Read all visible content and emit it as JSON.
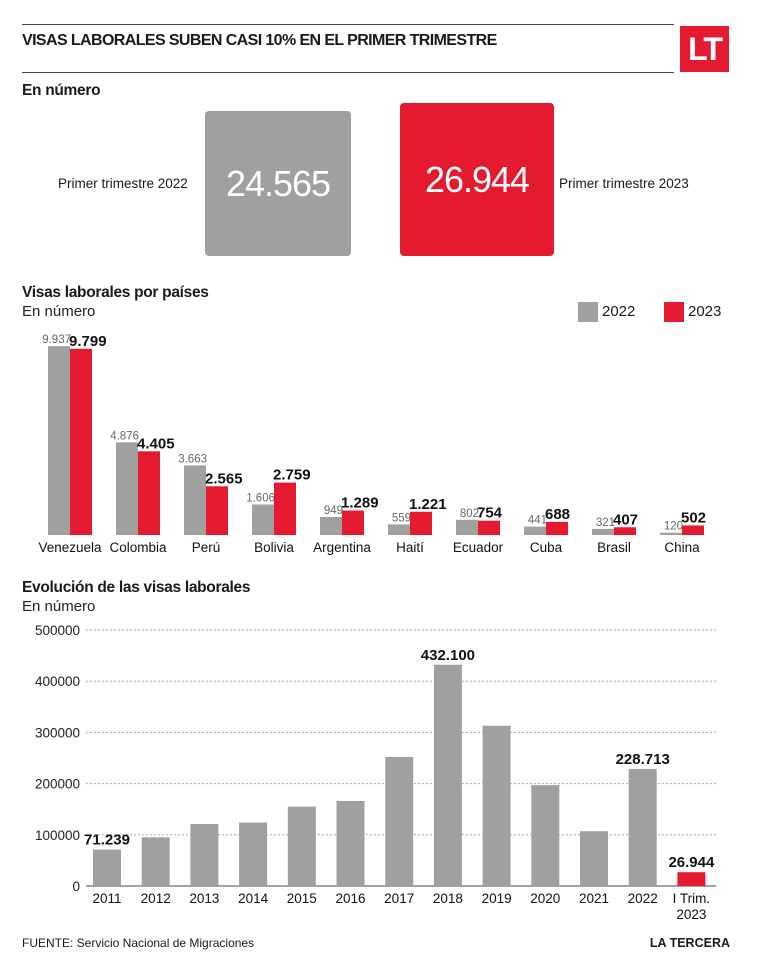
{
  "header": {
    "title": "VISAS LABORALES SUBEN CASI 10% EN EL PRIMER TRIMESTRE",
    "logo": "LT"
  },
  "summary": {
    "heading": "En número",
    "left_label": "Primer trimestre 2022",
    "left_value": "24.565",
    "right_label": "Primer trimestre 2023",
    "right_value": "26.944",
    "colors": {
      "2022": "#a0a0a0",
      "2023": "#e41b30"
    }
  },
  "countries": {
    "heading": "Visas laborales por países",
    "subheading": "En número",
    "legend": [
      "2022",
      "2023"
    ]
  },
  "evolution": {
    "heading": "Evolución de las visas laborales",
    "subheading": "En número"
  },
  "footer": {
    "source": "FUENTE: Servicio Nacional de Migraciones",
    "brand": "LA TERCERA"
  },
  "chart_data": [
    {
      "type": "bar",
      "title": "Visas laborales por países",
      "subtitle": "En número",
      "categories": [
        "Venezuela",
        "Colombia",
        "Perú",
        "Bolivia",
        "Argentina",
        "Haití",
        "Ecuador",
        "Cuba",
        "Brasil",
        "China"
      ],
      "series": [
        {
          "name": "2022",
          "color": "#a0a0a0",
          "values": [
            9937,
            4876,
            3663,
            1606,
            949,
            559,
            802,
            441,
            321,
            120
          ],
          "labels": [
            "9.937",
            "4.876",
            "3.663",
            "1.606",
            "949",
            "559",
            "802",
            "441",
            "321",
            "120"
          ]
        },
        {
          "name": "2023",
          "color": "#e41b30",
          "values": [
            9799,
            4405,
            2565,
            2759,
            1289,
            1221,
            754,
            688,
            407,
            502
          ],
          "labels": [
            "9.799",
            "4.405",
            "2.565",
            "2.759",
            "1.289",
            "1.221",
            "754",
            "688",
            "407",
            "502"
          ]
        }
      ],
      "ylim": [
        0,
        10000
      ],
      "legend": "top-right",
      "grid": false
    },
    {
      "type": "bar",
      "title": "Evolución de las visas laborales",
      "subtitle": "En número",
      "categories": [
        "2011",
        "2012",
        "2013",
        "2014",
        "2015",
        "2016",
        "2017",
        "2018",
        "2019",
        "2020",
        "2021",
        "2022",
        "I Trim. 2023"
      ],
      "values": [
        71239,
        95000,
        121000,
        124000,
        155000,
        166000,
        252000,
        432100,
        313000,
        197000,
        107000,
        228713,
        26944
      ],
      "colors": [
        "#a0a0a0",
        "#a0a0a0",
        "#a0a0a0",
        "#a0a0a0",
        "#a0a0a0",
        "#a0a0a0",
        "#a0a0a0",
        "#a0a0a0",
        "#a0a0a0",
        "#a0a0a0",
        "#a0a0a0",
        "#a0a0a0",
        "#e41b30"
      ],
      "data_labels": {
        "0": "71.239",
        "7": "432.100",
        "11": "228.713",
        "12": "26.944"
      },
      "yticks": [
        "0",
        "100000",
        "200000",
        "300000",
        "400000",
        "500000"
      ],
      "ylim": [
        0,
        500000
      ],
      "grid": true
    }
  ]
}
